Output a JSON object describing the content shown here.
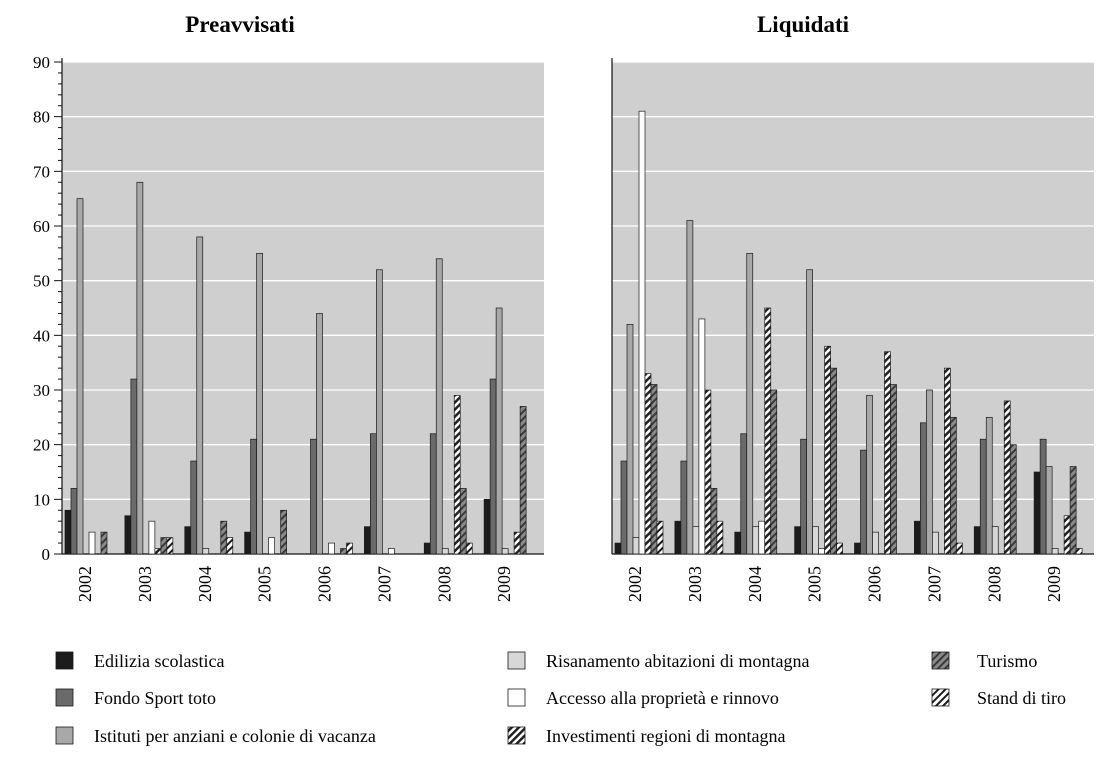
{
  "chart_data": [
    {
      "type": "bar",
      "title": "Preavvisati",
      "categories": [
        "2002",
        "2003",
        "2004",
        "2005",
        "2006",
        "2007",
        "2008",
        "2009"
      ],
      "ylim": [
        0,
        90
      ],
      "yticks": [
        0,
        10,
        20,
        30,
        40,
        50,
        60,
        70,
        80,
        90
      ],
      "grid": true,
      "series": [
        {
          "name": "Edilizia scolastica",
          "values": [
            8,
            7,
            5,
            4,
            0,
            5,
            2,
            10
          ]
        },
        {
          "name": "Fondo Sport toto",
          "values": [
            12,
            32,
            17,
            21,
            21,
            22,
            22,
            32
          ]
        },
        {
          "name": "Istituti per anziani e colonie di vacanza",
          "values": [
            65,
            68,
            58,
            55,
            44,
            52,
            54,
            45
          ]
        },
        {
          "name": "Risanamento abitazioni di montagna",
          "values": [
            0,
            0,
            1,
            0,
            0,
            0,
            1,
            1
          ]
        },
        {
          "name": "Accesso alla proprietà e rinnovo",
          "values": [
            4,
            6,
            0,
            3,
            2,
            1,
            0,
            0
          ]
        },
        {
          "name": "Investimenti regioni di montagna",
          "values": [
            0,
            1,
            0,
            0,
            0,
            0,
            29,
            4
          ]
        },
        {
          "name": "Turismo",
          "values": [
            4,
            3,
            6,
            8,
            1,
            0,
            12,
            27
          ]
        },
        {
          "name": "Stand di tiro",
          "values": [
            0,
            3,
            3,
            0,
            2,
            0,
            2,
            0
          ]
        }
      ]
    },
    {
      "type": "bar",
      "title": "Liquidati",
      "categories": [
        "2002",
        "2003",
        "2004",
        "2005",
        "2006",
        "2007",
        "2008",
        "2009"
      ],
      "ylim": [
        0,
        90
      ],
      "yticks": [
        0,
        10,
        20,
        30,
        40,
        50,
        60,
        70,
        80,
        90
      ],
      "grid": true,
      "series": [
        {
          "name": "Edilizia scolastica",
          "values": [
            2,
            6,
            4,
            5,
            2,
            6,
            5,
            15
          ]
        },
        {
          "name": "Fondo Sport toto",
          "values": [
            17,
            17,
            22,
            21,
            19,
            24,
            21,
            21
          ]
        },
        {
          "name": "Istituti per anziani e colonie di vacanza",
          "values": [
            42,
            61,
            55,
            52,
            29,
            30,
            25,
            16
          ]
        },
        {
          "name": "Risanamento abitazioni di montagna",
          "values": [
            3,
            5,
            5,
            5,
            4,
            4,
            5,
            1
          ]
        },
        {
          "name": "Accesso alla proprietà e rinnovo",
          "values": [
            81,
            43,
            6,
            1,
            0,
            0,
            0,
            0
          ]
        },
        {
          "name": "Investimenti regioni di montagna",
          "values": [
            33,
            30,
            45,
            38,
            37,
            34,
            28,
            7
          ]
        },
        {
          "name": "Turismo",
          "values": [
            31,
            12,
            30,
            34,
            31,
            25,
            20,
            16
          ]
        },
        {
          "name": "Stand di tiro",
          "values": [
            6,
            6,
            0,
            2,
            0,
            2,
            0,
            1
          ]
        }
      ]
    }
  ],
  "legend": {
    "placement": "bottom",
    "columns": 3
  },
  "styles": {
    "plot_bg": "#cfcfcf",
    "gridline": "#ffffff",
    "colors": [
      "#1c1c1c",
      "#6a6a6a",
      "#a8a8a8",
      "#d7d7d7",
      "#ffffff",
      "#ffffff",
      "#9a9a9a",
      "#1c1c1c"
    ],
    "patterns": [
      "solid",
      "solid",
      "solid",
      "solid",
      "solid",
      "hatch-dark",
      "hatch-grey",
      "hatch-light"
    ]
  }
}
